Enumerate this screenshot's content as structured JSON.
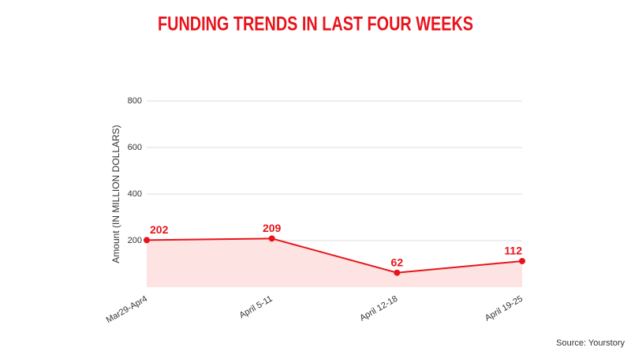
{
  "chart_data": {
    "type": "line",
    "title": "FUNDING TRENDS IN LAST FOUR WEEKS",
    "y_label": "Amount (IN MILLION DOLLARS)",
    "categories": [
      "Mar29-Apr4",
      "April 5-11",
      "April 12-18",
      "April 19-25"
    ],
    "values": [
      202,
      209,
      62,
      112
    ],
    "color": "#e8141b",
    "area_color": "#fde3e1",
    "ylim": [
      0,
      800
    ],
    "yticks": [
      200,
      400,
      600,
      800
    ],
    "grid": true,
    "source": "Source: Yourstory"
  }
}
